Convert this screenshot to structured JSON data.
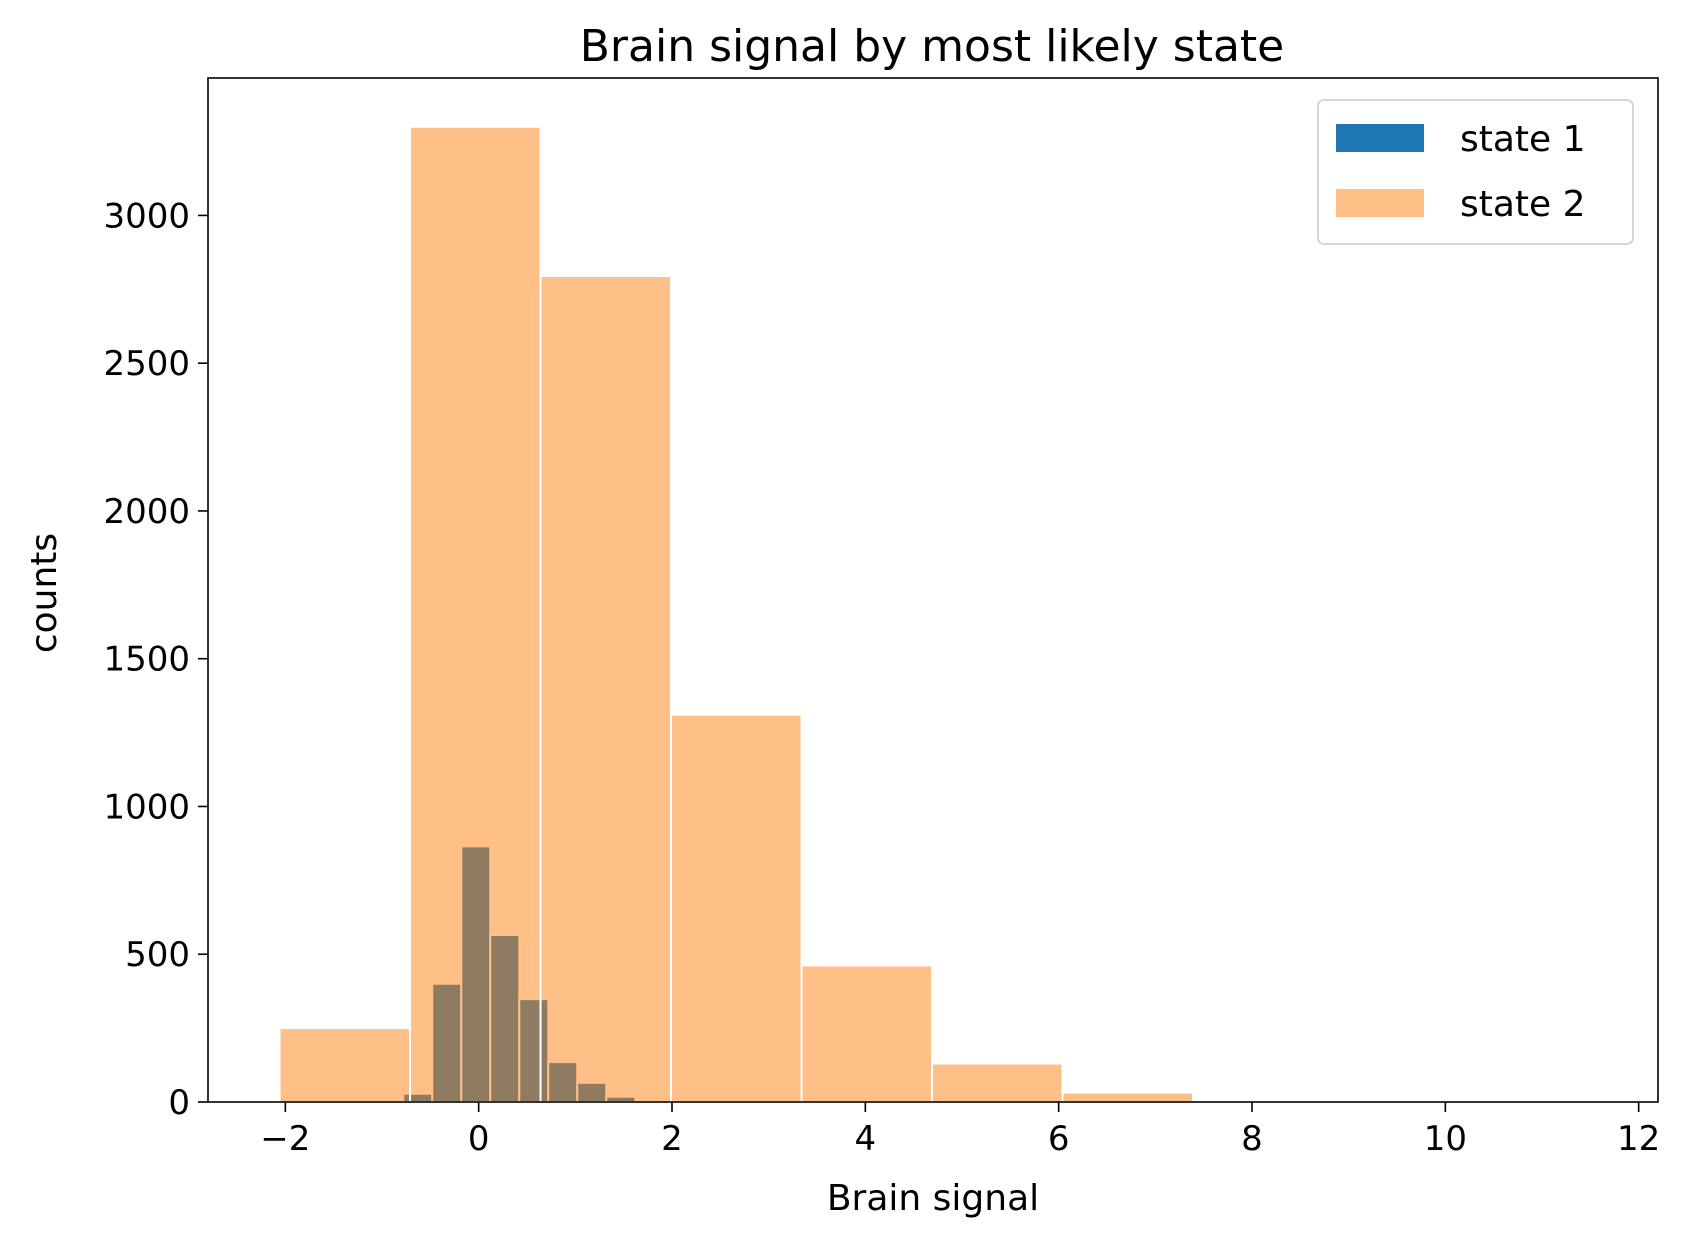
{
  "chart_data": {
    "type": "bar",
    "title": "Brain signal by most likely state",
    "xlabel": "Brain signal",
    "ylabel": "counts",
    "xlim": [
      -2.8,
      12.2
    ],
    "ylim": [
      0,
      3465
    ],
    "xticks": [
      -2,
      0,
      2,
      4,
      6,
      8,
      10,
      12
    ],
    "xtick_labels": [
      "−2",
      "0",
      "2",
      "4",
      "6",
      "8",
      "10",
      "12"
    ],
    "yticks": [
      0,
      500,
      1000,
      1500,
      2000,
      2500,
      3000
    ],
    "ytick_labels": [
      "0",
      "500",
      "1000",
      "1500",
      "2000",
      "2500",
      "3000"
    ],
    "grid": false,
    "legend_position": "top-right",
    "series": [
      {
        "name": "state 1",
        "color": "#1f77b4",
        "bins": [
          {
            "x0": -0.78,
            "x1": -0.48,
            "count": 28
          },
          {
            "x0": -0.48,
            "x1": -0.18,
            "count": 400
          },
          {
            "x0": -0.18,
            "x1": 0.12,
            "count": 865
          },
          {
            "x0": 0.12,
            "x1": 0.42,
            "count": 565
          },
          {
            "x0": 0.42,
            "x1": 0.72,
            "count": 348
          },
          {
            "x0": 0.72,
            "x1": 1.02,
            "count": 135
          },
          {
            "x0": 1.02,
            "x1": 1.32,
            "count": 65
          },
          {
            "x0": 1.32,
            "x1": 1.62,
            "count": 18
          }
        ]
      },
      {
        "name": "state 2",
        "color": "#ff7f0e",
        "bins": [
          {
            "x0": -2.06,
            "x1": -0.71,
            "count": 250
          },
          {
            "x0": -0.71,
            "x1": 0.64,
            "count": 3300
          },
          {
            "x0": 0.64,
            "x1": 1.99,
            "count": 2795
          },
          {
            "x0": 1.99,
            "x1": 3.34,
            "count": 1310
          },
          {
            "x0": 3.34,
            "x1": 4.69,
            "count": 462
          },
          {
            "x0": 4.69,
            "x1": 6.04,
            "count": 130
          },
          {
            "x0": 6.04,
            "x1": 7.39,
            "count": 32
          },
          {
            "x0": 7.39,
            "x1": 8.74,
            "count": 6
          },
          {
            "x0": 8.74,
            "x1": 10.09,
            "count": 1
          },
          {
            "x0": 10.09,
            "x1": 11.44,
            "count": 1
          }
        ]
      }
    ]
  }
}
